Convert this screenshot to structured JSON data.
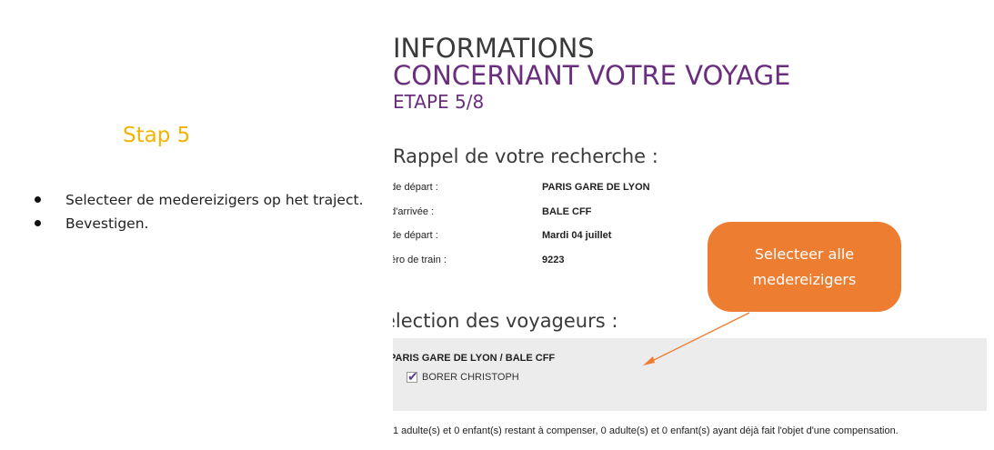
{
  "instructions": {
    "step_title": "Stap 5",
    "items": [
      "Selecteer de medereizigers op het traject.",
      "Bevestigen."
    ]
  },
  "page": {
    "title_line1": "INFORMATIONS",
    "title_line2": "CONCERNANT VOTRE VOYAGE",
    "step": "ETAPE 5/8",
    "recap_heading": "Rappel de votre recherche :",
    "recap": [
      {
        "label": "e de départ :",
        "value": "PARIS GARE DE LYON"
      },
      {
        "label": "e d'arrivée :",
        "value": "BALE CFF"
      },
      {
        "label": "e de départ :",
        "value": "Mardi 04 juillet"
      },
      {
        "label": "méro de train :",
        "value": "9223"
      }
    ],
    "selection_heading": "élection des voyageurs :",
    "route": "PARIS GARE DE LYON / BALE CFF",
    "traveller": {
      "name": "BORER CHRISTOPH",
      "checked": true
    },
    "footer_note": "1 adulte(s) et 0 enfant(s) restant à compenser, 0 adulte(s) et 0 enfant(s) ayant déjà fait l'objet d'une compensation."
  },
  "callout": {
    "line1": "Selecteer alle",
    "line2": "medereizigers",
    "color": "#ed7d31"
  },
  "colors": {
    "step_title": "#f2b400",
    "brand_purple": "#6b2e7e",
    "selection_bg": "#ececec"
  },
  "icons": {
    "checkbox": "checkmark-icon",
    "bullet": "bullet-icon"
  }
}
